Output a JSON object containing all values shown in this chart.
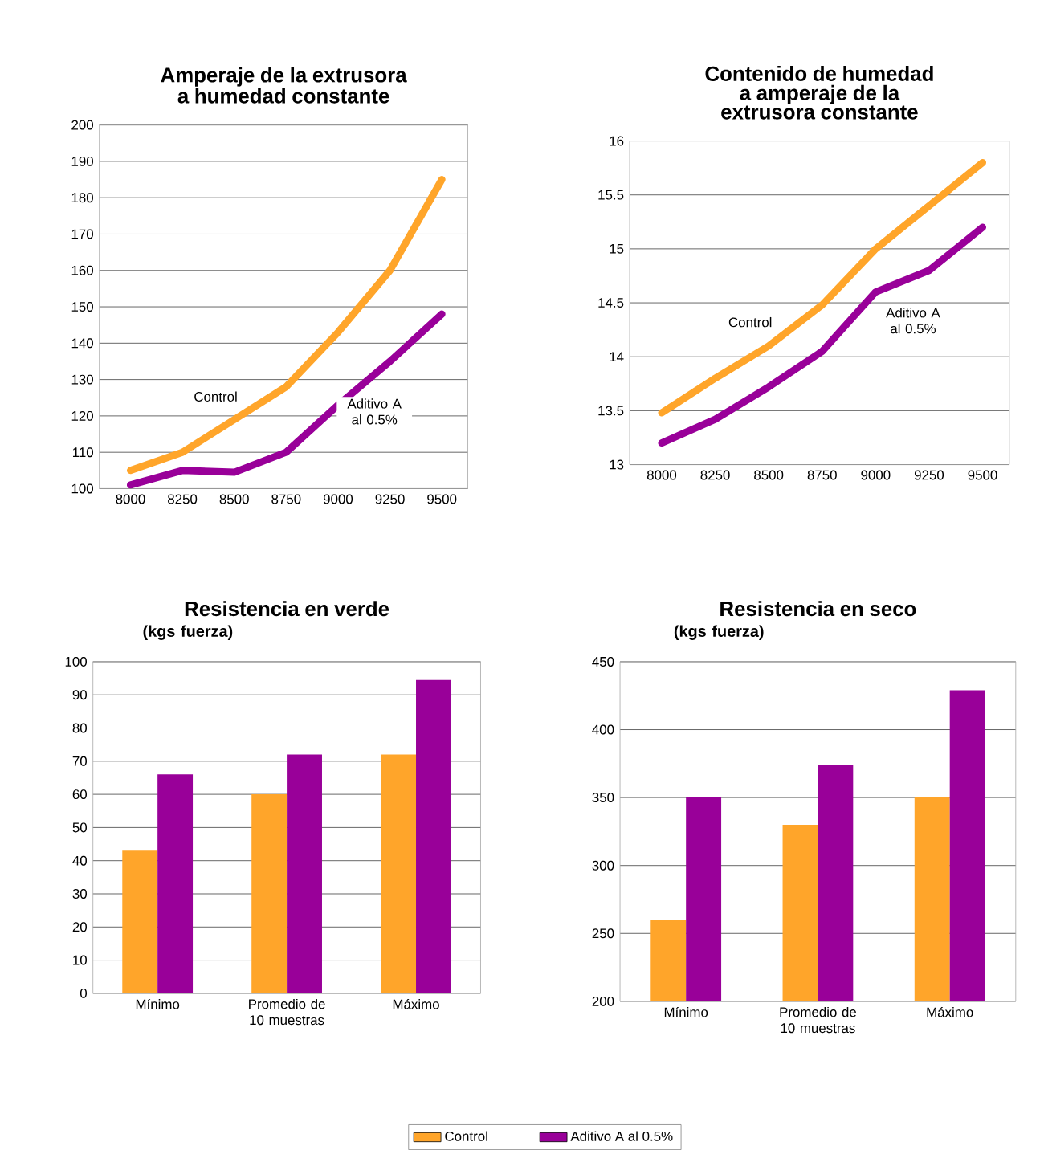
{
  "chart_data": [
    {
      "type": "line",
      "title": "Amperaje de la extrusora a humedad constante",
      "categories": [
        "8000",
        "8250",
        "8500",
        "8750",
        "9000",
        "9250",
        "9500"
      ],
      "ylim": [
        100,
        200
      ],
      "yticks": [
        100,
        110,
        120,
        130,
        140,
        150,
        160,
        170,
        180,
        190,
        200
      ],
      "grid": "y",
      "legend": false,
      "series": [
        {
          "name": "Control",
          "color": "#ffa52a",
          "values": [
            105,
            110,
            119,
            128,
            143,
            160,
            185
          ]
        },
        {
          "name": "Aditivo A al 0.5%",
          "color": "#990099",
          "values": [
            101,
            105,
            104.5,
            110,
            123,
            135,
            148
          ]
        }
      ]
    },
    {
      "type": "line",
      "title": "Contenido de humedad a amperaje de la extrusora constante",
      "categories": [
        "8000",
        "8250",
        "8500",
        "8750",
        "9000",
        "9250",
        "9500"
      ],
      "ylim": [
        13,
        16
      ],
      "yticks": [
        13,
        13.5,
        14,
        14.5,
        15,
        15.5,
        16
      ],
      "grid": "y",
      "legend": false,
      "series": [
        {
          "name": "Control",
          "color": "#ffa52a",
          "values": [
            13.48,
            13.8,
            14.1,
            14.48,
            15.0,
            15.4,
            15.8
          ]
        },
        {
          "name": "Aditivo A al 0.5%",
          "color": "#990099",
          "values": [
            13.2,
            13.42,
            13.72,
            14.05,
            14.6,
            14.8,
            15.2
          ]
        }
      ]
    },
    {
      "type": "bar",
      "title": "Resistencia en verde",
      "subtitle": "(kgs fuerza)",
      "categories": [
        "Mínimo",
        "Promedio de 10 muestras",
        "Máximo"
      ],
      "ylim": [
        0,
        100
      ],
      "yticks": [
        0,
        10,
        20,
        30,
        40,
        50,
        60,
        70,
        80,
        90,
        100
      ],
      "grid": "y",
      "legend": false,
      "series": [
        {
          "color": "#ffa52a",
          "values": [
            43,
            60,
            72
          ]
        },
        {
          "color": "#990099",
          "values": [
            66,
            72,
            94.5
          ]
        }
      ]
    },
    {
      "type": "bar",
      "title": "Resistencia en seco",
      "subtitle": "(kgs fuerza)",
      "categories": [
        "Mínimo",
        "Promedio de 10 muestras",
        "Máximo"
      ],
      "ylim": [
        200,
        450
      ],
      "yticks": [
        200,
        250,
        300,
        350,
        400,
        450
      ],
      "grid": "y",
      "legend": "bottom",
      "series": [
        {
          "name": "Control",
          "color": "#ffa52a",
          "values": [
            260,
            330,
            350
          ]
        },
        {
          "name": "Aditivo A al 0.5%",
          "color": "#990099",
          "values": [
            350,
            374,
            429
          ]
        }
      ]
    }
  ]
}
